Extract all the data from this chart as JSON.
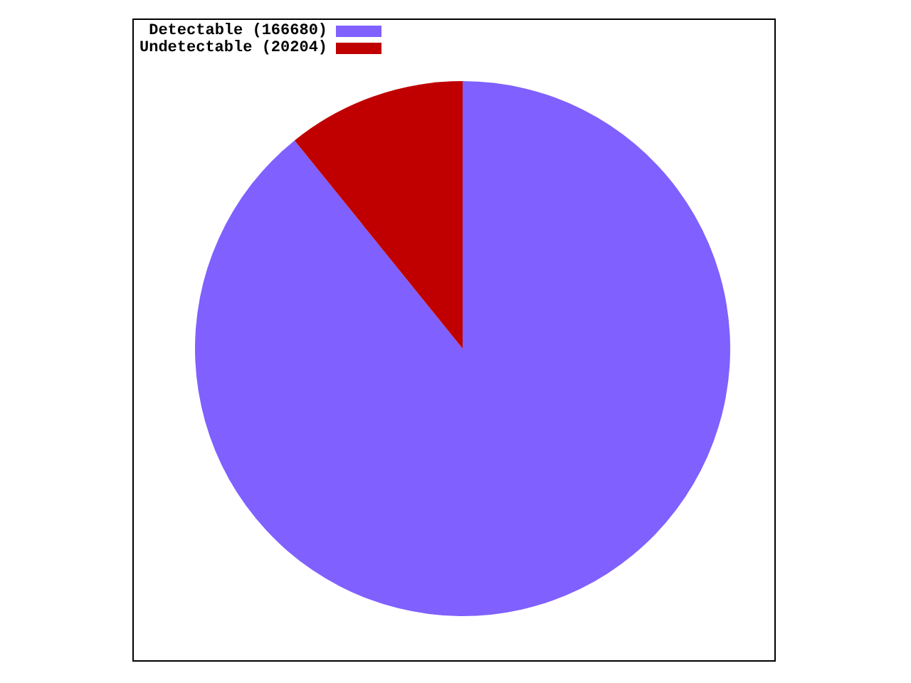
{
  "chart_data": {
    "type": "pie",
    "categories": [
      "Detectable (166680)",
      "Undetectable (20204)"
    ],
    "values": [
      166680,
      20204
    ],
    "colors": [
      "#8060ff",
      "#c00000"
    ],
    "legend": "top left"
  }
}
